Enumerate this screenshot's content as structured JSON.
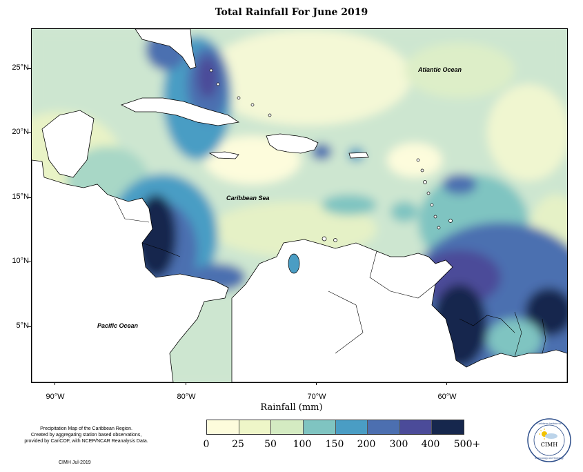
{
  "title": "Total Rainfall For June 2019",
  "axes": {
    "y_ticks": [
      "25°N",
      "20°N",
      "15°N",
      "10°N",
      "5°N"
    ],
    "x_ticks": [
      "90°W",
      "80°W",
      "70°W",
      "60°W"
    ],
    "x_title": "Rainfall (mm)"
  },
  "map_labels": {
    "atlantic": "Atlantic Ocean",
    "caribbean": "Caribbean Sea",
    "pacific": "Pacific Ocean"
  },
  "legend": {
    "bins": [
      {
        "label": "0",
        "color": "#fdfcdc"
      },
      {
        "label": "25",
        "color": "#eef6c8"
      },
      {
        "label": "50",
        "color": "#d4ebc2"
      },
      {
        "label": "100",
        "color": "#b4dcc4"
      },
      {
        "label": "150",
        "color": "#7fc4c1"
      },
      {
        "label": "200",
        "color": "#4a9dc4"
      },
      {
        "label": "300",
        "color": "#4c6fb0"
      },
      {
        "label": "400",
        "color": "#4b4b99"
      },
      {
        "label": "500+",
        "color": "#16274d"
      }
    ]
  },
  "description": {
    "line1": "Precipitation Map of the Caribbean Region.",
    "line2": "Created by aggregating station based observations,",
    "line3": "provided by CariCOF, with NCEP/NCAR Reanalysis Data."
  },
  "credit": "CIMH Jul-2019",
  "logo": {
    "ring_top": "Caribbean Institute for",
    "ring_bottom": "Meteorology and Hydrology",
    "center": "CIMH",
    "icon": "sun-cloud-icon"
  }
}
